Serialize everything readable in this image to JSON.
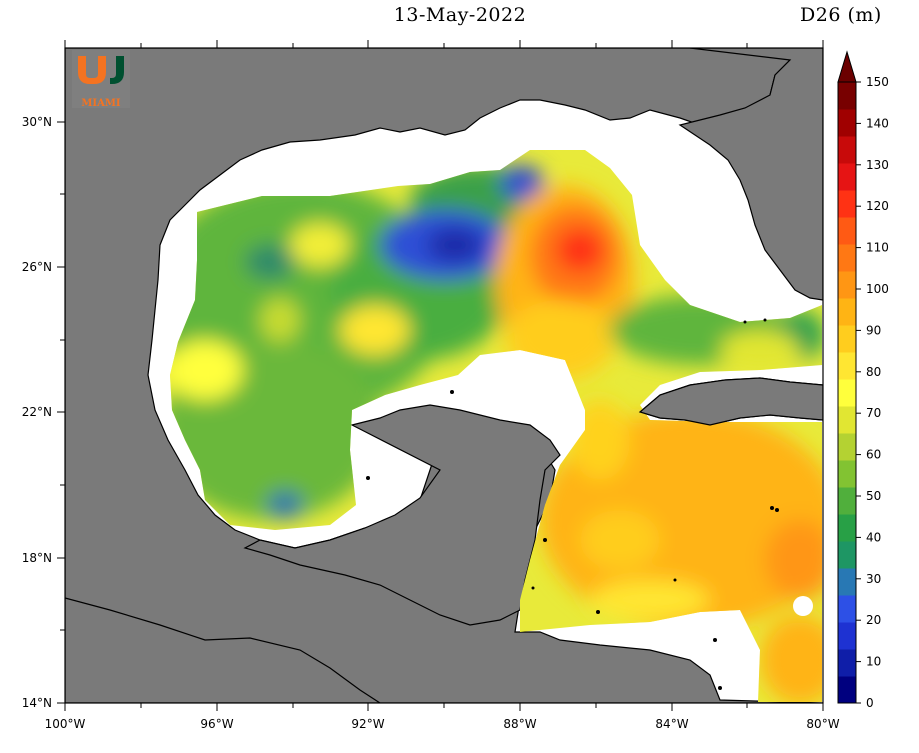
{
  "header": {
    "date": "13-May-2022",
    "variable": "D26 (m)"
  },
  "logo": {
    "text": "MIAMI",
    "primary_color": "#f47321",
    "secondary_color": "#005030"
  },
  "axes": {
    "lat_labels": [
      "30°N",
      "26°N",
      "22°N",
      "18°N",
      "14°N"
    ],
    "lon_labels": [
      "100°W",
      "96°W",
      "92°W",
      "88°W",
      "84°W",
      "80°W"
    ]
  },
  "colorbar": {
    "labels": [
      "150",
      "140",
      "130",
      "120",
      "110",
      "100",
      "90",
      "80",
      "70",
      "60",
      "50",
      "40",
      "30",
      "20",
      "10",
      "0"
    ],
    "colors": [
      "#00007f",
      "#0f1ea8",
      "#1e32d2",
      "#2d50e6",
      "#2878b4",
      "#1e9664",
      "#28a046",
      "#50af3c",
      "#82c332",
      "#b4d232",
      "#e1e632",
      "#ffff3c",
      "#ffe632",
      "#ffcd1e",
      "#ffb414",
      "#ff9614",
      "#ff7814",
      "#ff5a14",
      "#ff3214",
      "#e61414",
      "#c80a0a",
      "#a00000",
      "#780000"
    ],
    "arrow_color": "#6b0000"
  },
  "map": {
    "land_color": "#7a7a7a",
    "no_data_color": "#ffffff"
  }
}
